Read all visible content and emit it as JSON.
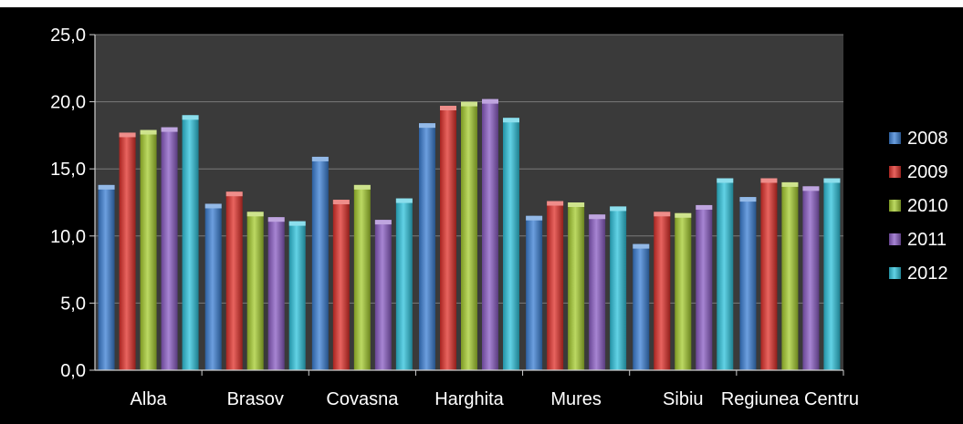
{
  "chart_data": {
    "type": "bar",
    "title": "",
    "xlabel": "",
    "ylabel": "",
    "categories": [
      "Alba",
      "Brasov",
      "Covasna",
      "Harghita",
      "Mures",
      "Sibiu",
      "Regiunea Centru"
    ],
    "ylim": [
      0,
      25
    ],
    "yticks": [
      "0,0",
      "5,0",
      "10,0",
      "15,0",
      "20,0",
      "25,0"
    ],
    "grid": true,
    "legend_position": "right",
    "series": [
      {
        "name": "2008",
        "color": "#3b7fd4",
        "values": [
          13.8,
          12.4,
          15.9,
          18.4,
          11.5,
          9.4,
          12.9
        ]
      },
      {
        "name": "2009",
        "color": "#e0302a",
        "values": [
          17.7,
          13.3,
          12.7,
          19.7,
          12.6,
          11.8,
          14.3
        ]
      },
      {
        "name": "2010",
        "color": "#a6cc2f",
        "values": [
          17.9,
          11.8,
          13.8,
          20.0,
          12.5,
          11.7,
          14.0
        ]
      },
      {
        "name": "2011",
        "color": "#8a5cc4",
        "values": [
          18.1,
          11.4,
          11.2,
          20.2,
          11.6,
          12.3,
          13.7
        ]
      },
      {
        "name": "2012",
        "color": "#2ec3dc",
        "values": [
          19.0,
          11.1,
          12.8,
          18.8,
          12.2,
          14.3,
          14.3
        ]
      }
    ]
  }
}
